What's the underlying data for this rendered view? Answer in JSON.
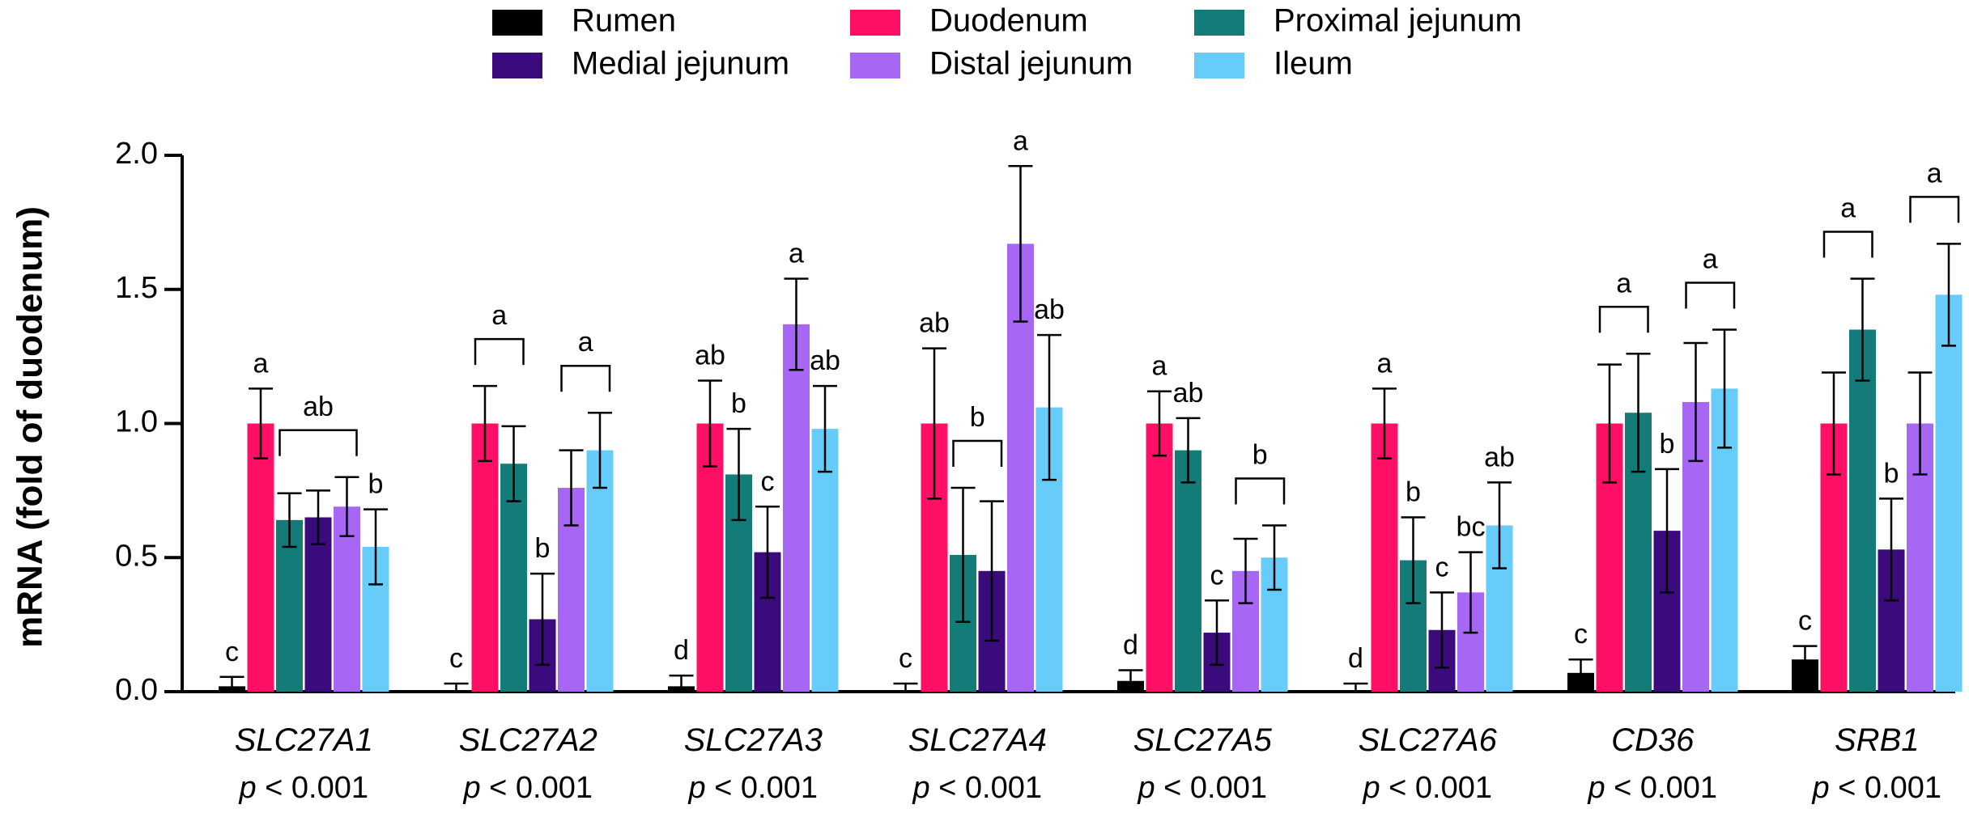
{
  "chart_data": {
    "type": "bar",
    "ylabel": "mRNA (fold of duodenum)",
    "ylim": [
      0,
      2.0
    ],
    "yticks": [
      "0.0",
      "0.5",
      "1.0",
      "1.5",
      "2.0"
    ],
    "ytick_values": [
      0,
      0.5,
      1.0,
      1.5,
      2.0
    ],
    "legend_position": "top",
    "series": [
      {
        "name": "Rumen",
        "color": "#000000"
      },
      {
        "name": "Duodenum",
        "color": "#FF1066"
      },
      {
        "name": "Proximal jejunum",
        "color": "#137B78"
      },
      {
        "name": "Medial jejunum",
        "color": "#3B0A7C"
      },
      {
        "name": "Distal jejunum",
        "color": "#A866F5"
      },
      {
        "name": "Ileum",
        "color": "#66CCFA"
      }
    ],
    "categories": [
      {
        "gene": "SLC27A1",
        "p_prefix": "p",
        "p_text": " < 0.001",
        "values": [
          0.02,
          1.0,
          0.64,
          0.65,
          0.69,
          0.54
        ],
        "errors": [
          0.035,
          0.13,
          0.1,
          0.1,
          0.11,
          0.14
        ],
        "letters": [
          "c",
          "a",
          "",
          "",
          "",
          "b"
        ],
        "brackets": [
          {
            "from": 2,
            "to": 4,
            "label": "ab"
          }
        ]
      },
      {
        "gene": "SLC27A2",
        "p_prefix": "p",
        "p_text": " < 0.001",
        "values": [
          0.0,
          1.0,
          0.85,
          0.27,
          0.76,
          0.9
        ],
        "errors": [
          0.03,
          0.14,
          0.14,
          0.17,
          0.14,
          0.14
        ],
        "letters": [
          "c",
          "",
          "",
          "b",
          "",
          ""
        ],
        "brackets": [
          {
            "from": 1,
            "to": 2,
            "label": "a"
          },
          {
            "from": 4,
            "to": 5,
            "label": "a"
          }
        ]
      },
      {
        "gene": "SLC27A3",
        "p_prefix": "p",
        "p_text": " < 0.001",
        "values": [
          0.02,
          1.0,
          0.81,
          0.52,
          1.37,
          0.98
        ],
        "errors": [
          0.04,
          0.16,
          0.17,
          0.17,
          0.17,
          0.16
        ],
        "letters": [
          "d",
          "ab",
          "b",
          "c",
          "a",
          "ab"
        ],
        "brackets": []
      },
      {
        "gene": "SLC27A4",
        "p_prefix": "p",
        "p_text": " < 0.001",
        "values": [
          0.0,
          1.0,
          0.51,
          0.45,
          1.67,
          1.06
        ],
        "errors": [
          0.03,
          0.28,
          0.25,
          0.26,
          0.29,
          0.27
        ],
        "letters": [
          "c",
          "ab",
          "",
          "",
          "a",
          "ab"
        ],
        "brackets": [
          {
            "from": 2,
            "to": 3,
            "label": "b"
          }
        ]
      },
      {
        "gene": "SLC27A5",
        "p_prefix": "p",
        "p_text": " < 0.001",
        "values": [
          0.04,
          1.0,
          0.9,
          0.22,
          0.45,
          0.5
        ],
        "errors": [
          0.04,
          0.12,
          0.12,
          0.12,
          0.12,
          0.12
        ],
        "letters": [
          "d",
          "a",
          "ab",
          "c",
          "",
          ""
        ],
        "brackets": [
          {
            "from": 4,
            "to": 5,
            "label": "b"
          }
        ]
      },
      {
        "gene": "SLC27A6",
        "p_prefix": "p",
        "p_text": " < 0.001",
        "values": [
          0.0,
          1.0,
          0.49,
          0.23,
          0.37,
          0.62
        ],
        "errors": [
          0.03,
          0.13,
          0.16,
          0.14,
          0.15,
          0.16
        ],
        "letters": [
          "d",
          "a",
          "b",
          "c",
          "bc",
          "ab"
        ],
        "brackets": []
      },
      {
        "gene": "CD36",
        "p_prefix": "p",
        "p_text": " < 0.001",
        "values": [
          0.07,
          1.0,
          1.04,
          0.6,
          1.08,
          1.13
        ],
        "errors": [
          0.05,
          0.22,
          0.22,
          0.23,
          0.22,
          0.22
        ],
        "letters": [
          "c",
          "",
          "",
          "b",
          "",
          ""
        ],
        "brackets": [
          {
            "from": 1,
            "to": 2,
            "label": "a"
          },
          {
            "from": 4,
            "to": 5,
            "label": "a"
          }
        ]
      },
      {
        "gene": "SRB1",
        "p_prefix": "p",
        "p_text": " < 0.001",
        "values": [
          0.12,
          1.0,
          1.35,
          0.53,
          1.0,
          1.48
        ],
        "errors": [
          0.05,
          0.19,
          0.19,
          0.19,
          0.19,
          0.19
        ],
        "letters": [
          "c",
          "",
          "",
          "b",
          "",
          ""
        ],
        "brackets": [
          {
            "from": 1,
            "to": 2,
            "label": "a"
          },
          {
            "from": 4,
            "to": 5,
            "label": "a"
          }
        ]
      }
    ]
  }
}
